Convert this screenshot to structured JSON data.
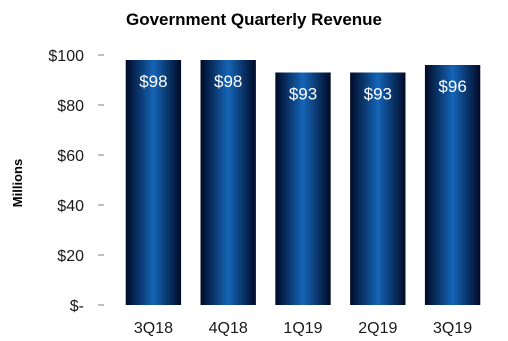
{
  "chart_data": {
    "type": "bar",
    "title": "Government Quarterly Revenue",
    "ylabel": "Millions",
    "xlabel": "",
    "categories": [
      "3Q18",
      "4Q18",
      "1Q19",
      "2Q19",
      "3Q19"
    ],
    "values": [
      98,
      98,
      93,
      93,
      96
    ],
    "data_labels": [
      "$98",
      "$98",
      "$93",
      "$93",
      "$96"
    ],
    "ylim": [
      0,
      100
    ],
    "yticks": [
      0,
      20,
      40,
      60,
      80,
      100
    ],
    "ytick_labels": [
      "$-",
      "$20",
      "$40",
      "$60",
      "$80",
      "$100"
    ],
    "grid": false,
    "legend": "none",
    "bar_color_center": "#1565b8",
    "bar_color_edge": "#000a26"
  }
}
